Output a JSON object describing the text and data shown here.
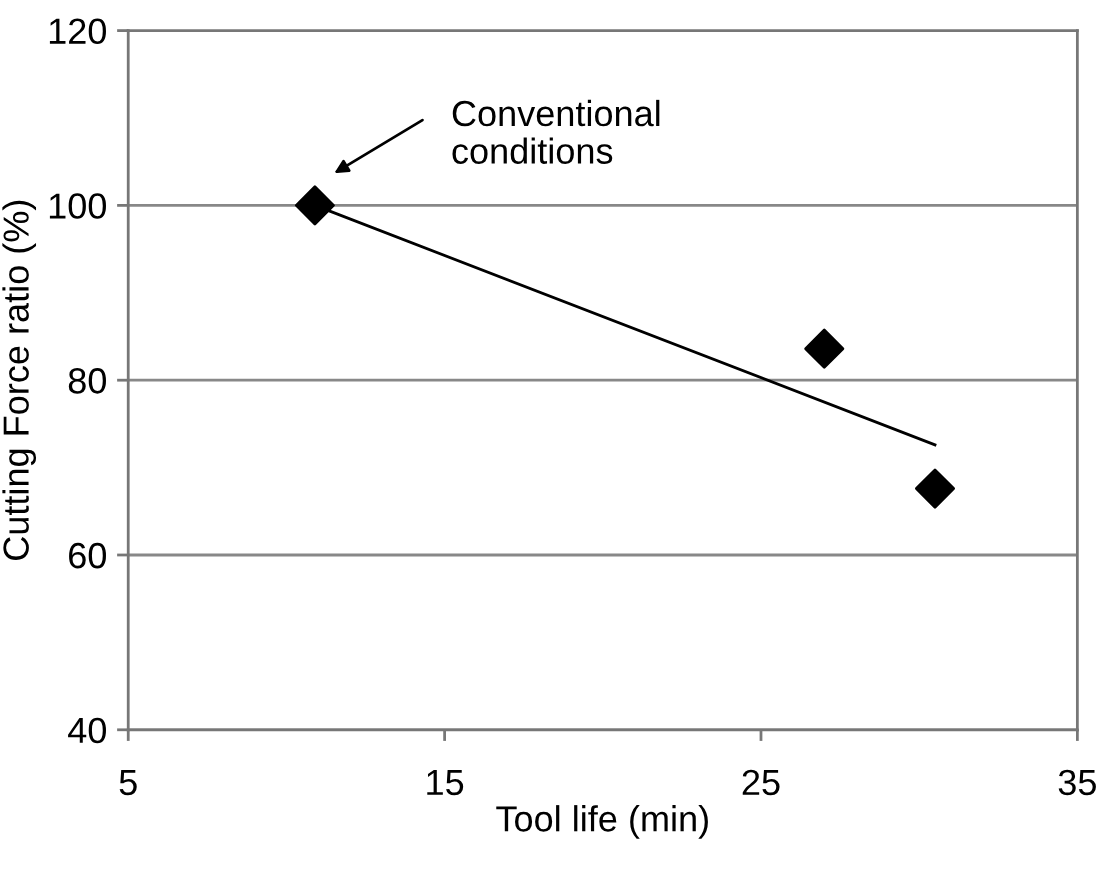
{
  "chart_data": {
    "type": "scatter",
    "xlabel": "Tool life (min)",
    "ylabel": "Cutting Force ratio (%)",
    "xlim": [
      5,
      35
    ],
    "xticks": [
      5,
      15,
      25,
      35
    ],
    "ylim": [
      40,
      120
    ],
    "yticks": [
      40,
      60,
      80,
      100,
      120
    ],
    "grid": "y",
    "series": [
      {
        "color": "#000000",
        "x": [
          10.9,
          27.0,
          30.5
        ],
        "values": [
          100,
          83.6,
          67.6
        ],
        "marker": "diamond"
      },
      {
        "type": "line",
        "color": "#000000",
        "x": [
          10.9,
          30.5
        ],
        "values": [
          100,
          72.6
        ],
        "line_style": "solid",
        "marker": "none"
      }
    ],
    "annotations": [
      "Conventional\nconditions"
    ]
  }
}
